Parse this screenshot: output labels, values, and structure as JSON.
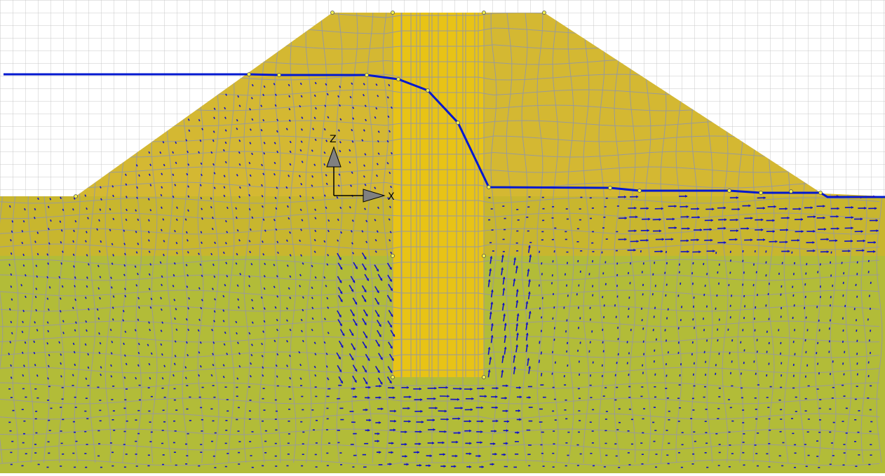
{
  "viewport": {
    "colors": {
      "background": "#ffffff",
      "background_grid": "#c8c8c8",
      "dam_fill": "#d4b832",
      "core_fill": "#e8c316",
      "foundation_upper_fill": "#c8b62e",
      "foundation_lower_fill": "#b2bc38",
      "mesh_line": "#9a9a9a",
      "phreatic_line": "#0018d0",
      "flow_arrow": "#1010c8",
      "node_marker": "#f0f050"
    },
    "axes": {
      "x_label": "X",
      "z_label": "Z"
    }
  }
}
